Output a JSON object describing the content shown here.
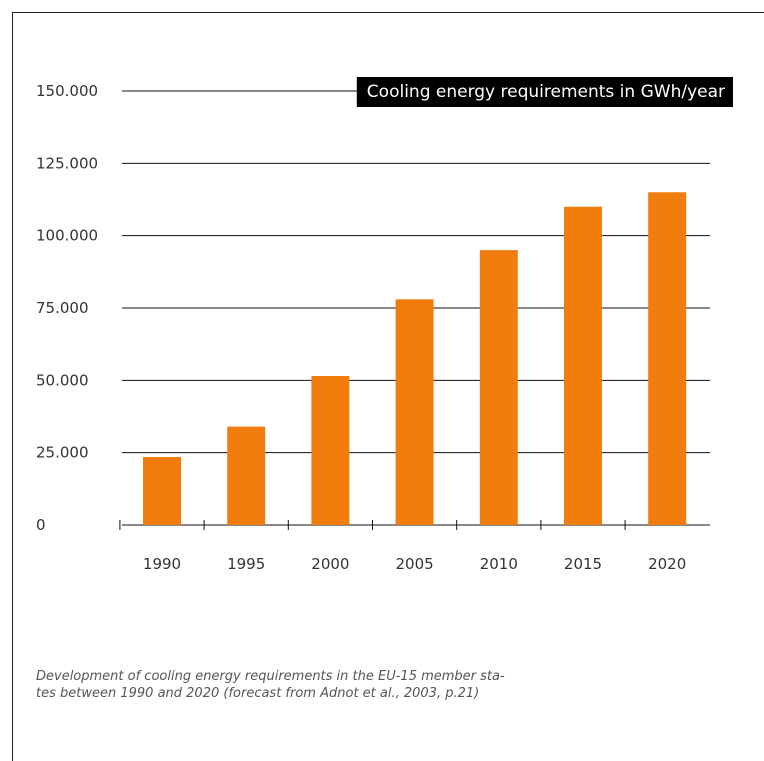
{
  "chart_data": {
    "type": "bar",
    "title": "Cooling energy requirements in GWh/year",
    "categories": [
      "1990",
      "1995",
      "2000",
      "2005",
      "2010",
      "2015",
      "2020"
    ],
    "values": [
      23500,
      34000,
      51500,
      78000,
      95000,
      110000,
      115000
    ],
    "ylim": [
      0,
      150000
    ],
    "yticks": [
      {
        "value": 0,
        "label": "0"
      },
      {
        "value": 25000,
        "label": "25.000"
      },
      {
        "value": 50000,
        "label": "50.000"
      },
      {
        "value": 75000,
        "label": "75.000"
      },
      {
        "value": 100000,
        "label": "100.000"
      },
      {
        "value": 125000,
        "label": "125.000"
      },
      {
        "value": 150000,
        "label": "150.000"
      }
    ],
    "grid": true,
    "bar_color": "#f07d0e",
    "title_bg": "#000000",
    "title_color": "#ffffff",
    "xlabel": "",
    "ylabel": ""
  },
  "caption": {
    "line1": "Development of cooling energy requirements in the EU-15 member sta-",
    "line2": "tes between 1990 and 2020 (forecast from Adnot et al., 2003, p.21)"
  }
}
